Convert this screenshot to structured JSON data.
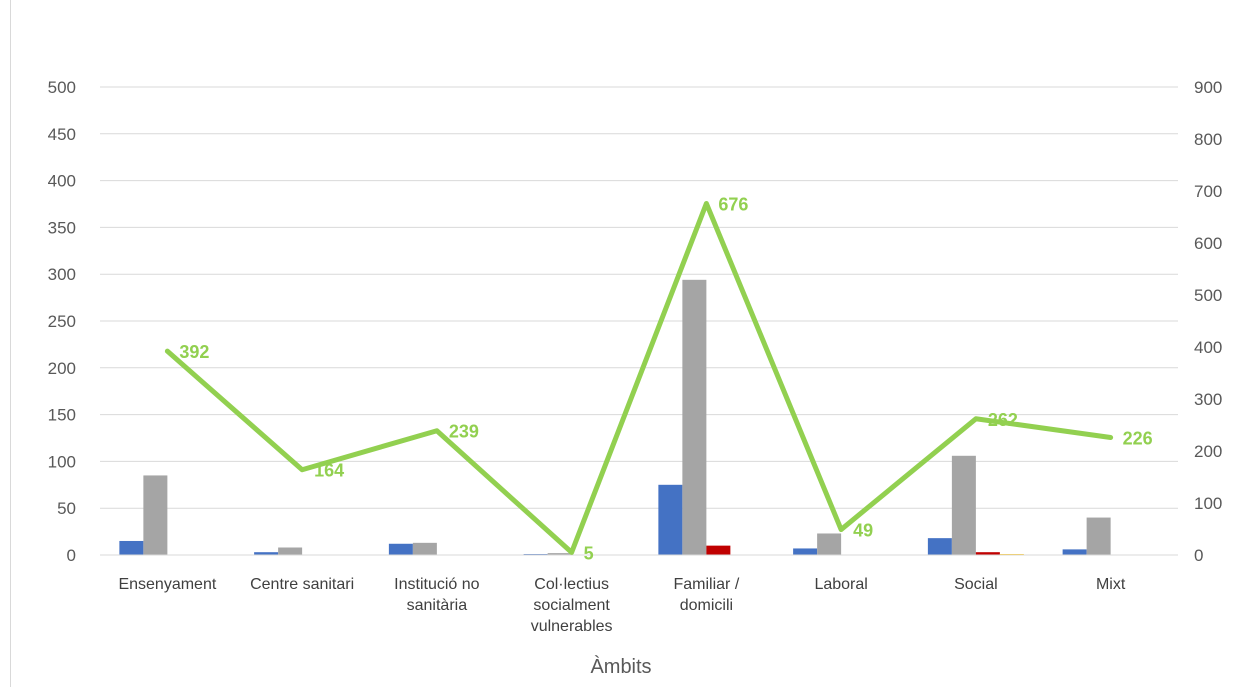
{
  "chart_data": {
    "type": "bar",
    "title": "",
    "xlabel": "Àmbits",
    "ylabel": "",
    "categories": [
      [
        "Ensenyament"
      ],
      [
        "Centre sanitari"
      ],
      [
        "Institució no",
        "sanitària"
      ],
      [
        "Col·lectius",
        "socialment",
        "vulnerables"
      ],
      [
        "Familiar /",
        "domicili"
      ],
      [
        "Laboral"
      ],
      [
        "Social"
      ],
      [
        "Mixt"
      ]
    ],
    "ylim": [
      0,
      500
    ],
    "y_ticks": [
      "0",
      "50",
      "100",
      "150",
      "200",
      "250",
      "300",
      "350",
      "400",
      "450",
      "500"
    ],
    "y2lim": [
      0,
      900
    ],
    "y2_ticks": [
      "0",
      "100",
      "200",
      "300",
      "400",
      "500",
      "600",
      "700",
      "800",
      "900"
    ],
    "grid": true,
    "legend": "none",
    "series": [
      {
        "type": "bar",
        "color": "#4472c4",
        "values": [
          15,
          3,
          12,
          1,
          75,
          7,
          18,
          6
        ]
      },
      {
        "type": "bar",
        "color": "#a5a5a5",
        "values": [
          85,
          8,
          13,
          2,
          294,
          23,
          106,
          40
        ]
      },
      {
        "type": "bar",
        "color": "#c00000",
        "values": [
          0,
          0,
          0,
          0,
          10,
          0,
          3,
          0
        ]
      },
      {
        "type": "bar",
        "color": "#ffc000",
        "values": [
          0,
          0,
          0,
          0,
          0,
          0,
          1,
          0
        ]
      },
      {
        "type": "line",
        "axis": "right",
        "color": "#92d050",
        "values": [
          392,
          164,
          239,
          5,
          676,
          49,
          262,
          226
        ],
        "data_labels": [
          "392",
          "164",
          "239",
          "5",
          "676",
          "49",
          "262",
          "226"
        ]
      }
    ]
  }
}
